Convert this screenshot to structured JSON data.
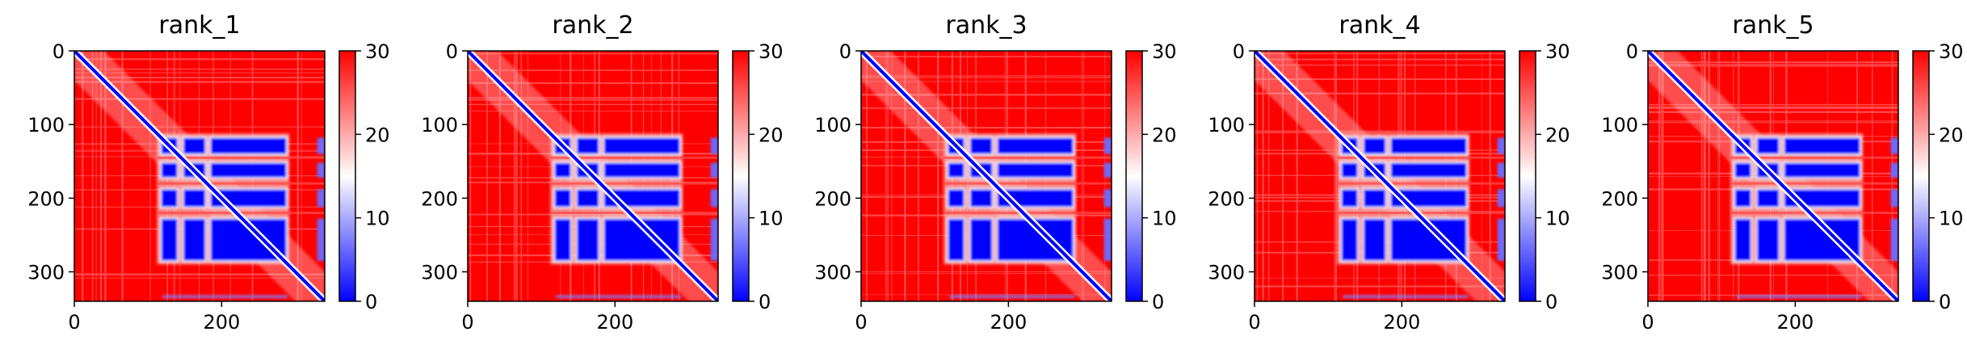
{
  "figure": {
    "colors": {
      "low": "#0000ff",
      "mid": "#ffffff",
      "high": "#ff0000",
      "axis": "#000000"
    }
  },
  "chart_data": [
    {
      "type": "heatmap",
      "title": "rank_1",
      "xlabel": "",
      "ylabel": "",
      "xlim": [
        0,
        340
      ],
      "ylim": [
        340,
        0
      ],
      "x_ticks": [
        "0",
        "200"
      ],
      "y_ticks": [
        "0",
        "100",
        "200",
        "300"
      ],
      "colorbar": {
        "range": [
          0,
          30
        ],
        "ticks": [
          "0",
          "10",
          "20",
          "30"
        ],
        "colormap": "bwr"
      },
      "matrix_description_values": {
        "blocks": [
          [
            115,
            285
          ],
          [
            155,
            170
          ],
          [
            195,
            215
          ]
        ],
        "background_value": 30,
        "diagonal_value": 0
      }
    },
    {
      "type": "heatmap",
      "title": "rank_2",
      "xlabel": "",
      "ylabel": "",
      "xlim": [
        0,
        340
      ],
      "ylim": [
        340,
        0
      ],
      "x_ticks": [
        "0",
        "200"
      ],
      "y_ticks": [
        "0",
        "100",
        "200",
        "300"
      ],
      "colorbar": {
        "range": [
          0,
          30
        ],
        "ticks": [
          "0",
          "10",
          "20",
          "30"
        ],
        "colormap": "bwr"
      },
      "matrix_description_values": {
        "blocks": [
          [
            115,
            285
          ],
          [
            155,
            170
          ],
          [
            195,
            215
          ]
        ],
        "background_value": 30,
        "diagonal_value": 0
      }
    },
    {
      "type": "heatmap",
      "title": "rank_3",
      "xlabel": "",
      "ylabel": "",
      "xlim": [
        0,
        340
      ],
      "ylim": [
        340,
        0
      ],
      "x_ticks": [
        "0",
        "200"
      ],
      "y_ticks": [
        "0",
        "100",
        "200",
        "300"
      ],
      "colorbar": {
        "range": [
          0,
          30
        ],
        "ticks": [
          "0",
          "10",
          "20",
          "30"
        ],
        "colormap": "bwr"
      },
      "matrix_description_values": {
        "blocks": [
          [
            115,
            285
          ],
          [
            155,
            170
          ],
          [
            195,
            215
          ]
        ],
        "background_value": 30,
        "diagonal_value": 0
      }
    },
    {
      "type": "heatmap",
      "title": "rank_4",
      "xlabel": "",
      "ylabel": "",
      "xlim": [
        0,
        340
      ],
      "ylim": [
        340,
        0
      ],
      "x_ticks": [
        "0",
        "200"
      ],
      "y_ticks": [
        "0",
        "100",
        "200",
        "300"
      ],
      "colorbar": {
        "range": [
          0,
          30
        ],
        "ticks": [
          "0",
          "10",
          "20",
          "30"
        ],
        "colormap": "bwr"
      },
      "matrix_description_values": {
        "blocks": [
          [
            115,
            285
          ],
          [
            155,
            170
          ],
          [
            195,
            215
          ]
        ],
        "background_value": 30,
        "diagonal_value": 0
      }
    },
    {
      "type": "heatmap",
      "title": "rank_5",
      "xlabel": "",
      "ylabel": "",
      "xlim": [
        0,
        340
      ],
      "ylim": [
        340,
        0
      ],
      "x_ticks": [
        "0",
        "200"
      ],
      "y_ticks": [
        "0",
        "100",
        "200",
        "300"
      ],
      "colorbar": {
        "range": [
          0,
          30
        ],
        "ticks": [
          "0",
          "10",
          "20",
          "30"
        ],
        "colormap": "bwr"
      },
      "matrix_description_values": {
        "blocks": [
          [
            115,
            285
          ],
          [
            155,
            170
          ],
          [
            195,
            215
          ]
        ],
        "background_value": 30,
        "diagonal_value": 0
      }
    }
  ]
}
